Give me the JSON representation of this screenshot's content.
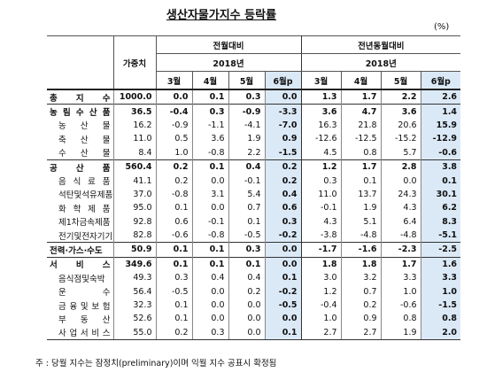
{
  "title": "생산자물가지수 등락률",
  "unit": "(%)",
  "table": {
    "header": {
      "weight": "가중치",
      "mom": "전월대비",
      "yoy": "전년동월대비",
      "year": "2018년",
      "months": [
        "3월",
        "4월",
        "5월",
        "6월p"
      ]
    },
    "rows": [
      [
        "총 지 수",
        "1000.0",
        "0.0",
        "0.1",
        "0.3",
        "0.0",
        "1.3",
        "1.7",
        "2.2",
        "2.6"
      ],
      [
        "농 림 수 산 품",
        "36.5",
        "-0.4",
        "0.3",
        "-0.9",
        "-3.3",
        "3.6",
        "4.7",
        "3.6",
        "1.4"
      ],
      [
        "농 산 물",
        "16.2",
        "-0.9",
        "-1.1",
        "-4.1",
        "-7.0",
        "16.3",
        "21.8",
        "20.6",
        "15.9"
      ],
      [
        "축 산 물",
        "11.0",
        "0.5",
        "3.6",
        "1.9",
        "0.9",
        "-12.6",
        "-12.5",
        "-15.2",
        "-12.9"
      ],
      [
        "수 산 물",
        "8.4",
        "1.0",
        "-0.8",
        "2.2",
        "-1.5",
        "4.5",
        "0.8",
        "5.7",
        "-0.6"
      ],
      [
        "공 산 품",
        "560.4",
        "0.2",
        "0.1",
        "0.4",
        "0.2",
        "1.2",
        "1.7",
        "2.8",
        "3.8"
      ],
      [
        "음 식 료 품",
        "41.1",
        "0.2",
        "0.0",
        "-0.1",
        "0.2",
        "0.3",
        "0.1",
        "0.0",
        "0.1"
      ],
      [
        "석탄및석유제품",
        "37.0",
        "-0.8",
        "3.1",
        "5.4",
        "0.4",
        "11.0",
        "13.7",
        "24.3",
        "30.1"
      ],
      [
        "화 학 제 품",
        "95.0",
        "0.1",
        "0.0",
        "0.7",
        "0.6",
        "-0.1",
        "1.9",
        "4.3",
        "6.2"
      ],
      [
        "제1차금속제품",
        "92.8",
        "0.6",
        "-0.1",
        "0.1",
        "0.3",
        "4.3",
        "5.1",
        "6.4",
        "8.3"
      ],
      [
        "전기및전자기기",
        "82.8",
        "-0.6",
        "-0.8",
        "-0.5",
        "-0.2",
        "-3.8",
        "-4.8",
        "-4.8",
        "-5.1"
      ],
      [
        "전력·가스·수도",
        "50.9",
        "0.1",
        "0.1",
        "0.3",
        "0.0",
        "-1.7",
        "-1.6",
        "-2.3",
        "-2.5"
      ],
      [
        "서 비 스",
        "349.6",
        "0.1",
        "0.1",
        "0.1",
        "0.0",
        "1.8",
        "1.8",
        "1.7",
        "1.6"
      ],
      [
        "음식점및숙박",
        "49.3",
        "0.3",
        "0.4",
        "0.4",
        "0.1",
        "3.0",
        "3.2",
        "3.3",
        "3.3"
      ],
      [
        "운 수",
        "56.4",
        "-0.5",
        "0.0",
        "0.2",
        "-0.2",
        "1.2",
        "0.7",
        "1.0",
        "1.0"
      ],
      [
        "금 융 및 보 험",
        "32.3",
        "0.1",
        "0.0",
        "0.0",
        "-0.5",
        "-0.4",
        "0.2",
        "-0.6",
        "-1.5"
      ],
      [
        "부 동 산",
        "52.6",
        "0.1",
        "0.0",
        "0.0",
        "0.0",
        "1.0",
        "0.9",
        "0.8",
        "0.8"
      ],
      [
        "사 업 서 비 스",
        "55.0",
        "0.2",
        "0.3",
        "0.0",
        "0.1",
        "2.7",
        "2.7",
        "1.9",
        "2.0"
      ]
    ]
  },
  "footnote": "주 : 당월 지수는 잠정치(preliminary)이며 익월 지수 공표시 확정됨"
}
